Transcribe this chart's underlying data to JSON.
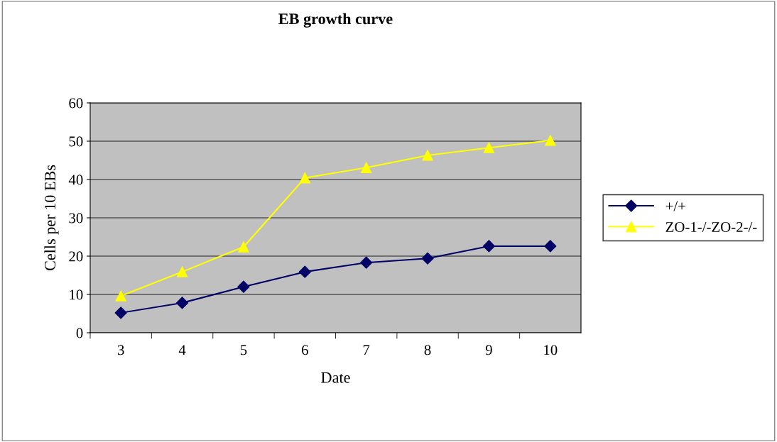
{
  "chart_data": {
    "type": "line",
    "title": "EB growth curve",
    "xlabel": "Date",
    "ylabel": "Cells per 10 EBs",
    "categories": [
      "3",
      "4",
      "5",
      "6",
      "7",
      "8",
      "9",
      "10"
    ],
    "series": [
      {
        "name": "+/+",
        "color": "#000066",
        "marker": "diamond",
        "values": [
          5.2,
          7.8,
          12.0,
          15.9,
          18.3,
          19.4,
          22.6,
          22.6
        ]
      },
      {
        "name": "ZO-1-/-ZO-2-/-",
        "color": "#ffff00",
        "marker": "triangle",
        "values": [
          9.6,
          15.9,
          22.4,
          40.4,
          43.1,
          46.3,
          48.3,
          50.2
        ]
      }
    ],
    "ylim": [
      0,
      60
    ],
    "yticks": [
      0,
      10,
      20,
      30,
      40,
      50,
      60
    ],
    "grid": "y",
    "legend": "right"
  }
}
